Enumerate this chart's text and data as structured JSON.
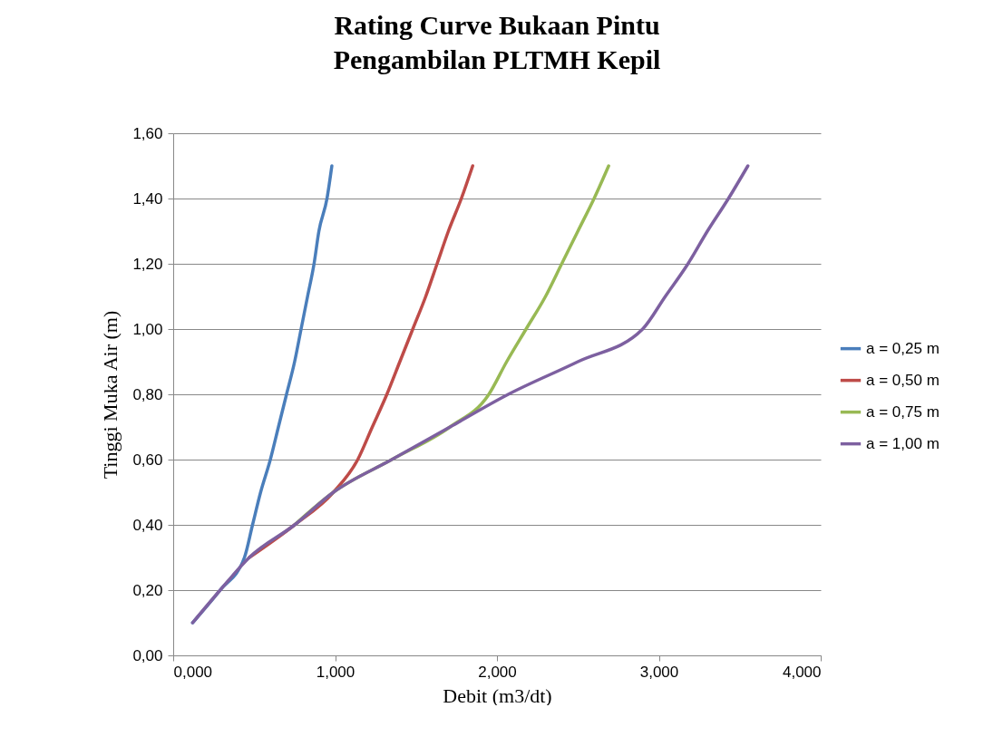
{
  "chart_data": {
    "type": "line",
    "title": "Rating Curve Bukaan Pintu\nPengambilan PLTMH Kepil",
    "xlabel": "Debit (m3/dt)",
    "ylabel": "Tinggi Muka Air (m)",
    "series": [
      {
        "name": "a = 0,25 m",
        "color": "#4a7ebb",
        "x": [
          0.12,
          0.29,
          0.44,
          0.49,
          0.54,
          0.6,
          0.65,
          0.7,
          0.75,
          0.79,
          0.83,
          0.87,
          0.9,
          0.95,
          0.98
        ],
        "values": [
          0.1,
          0.2,
          0.3,
          0.4,
          0.5,
          0.6,
          0.7,
          0.8,
          0.9,
          1.0,
          1.1,
          1.2,
          1.3,
          1.4,
          1.5
        ]
      },
      {
        "name": "a = 0,50 m",
        "color": "#be4b48",
        "x": [
          0.47,
          0.75,
          0.99,
          1.14,
          1.23,
          1.32,
          1.4,
          1.48,
          1.56,
          1.63,
          1.7,
          1.78,
          1.85
        ],
        "values": [
          0.3,
          0.4,
          0.5,
          0.6,
          0.7,
          0.8,
          0.9,
          1.0,
          1.1,
          1.2,
          1.3,
          1.4,
          1.5
        ]
      },
      {
        "name": "a = 0,75 m",
        "color": "#98b954",
        "x": [
          0.75,
          0.99,
          1.35,
          1.71,
          1.95,
          2.06,
          2.18,
          2.3,
          2.4,
          2.5,
          2.6,
          2.69
        ],
        "values": [
          0.4,
          0.5,
          0.6,
          0.7,
          0.8,
          0.9,
          1.0,
          1.1,
          1.2,
          1.3,
          1.4,
          1.5
        ]
      },
      {
        "name": "a = 1,00 m",
        "color": "#7d60a0",
        "x": [
          0.12,
          0.29,
          0.47,
          0.75,
          0.99,
          1.35,
          1.71,
          2.07,
          2.5,
          2.9,
          3.04,
          3.18,
          3.3,
          3.43,
          3.55
        ],
        "values": [
          0.1,
          0.2,
          0.3,
          0.4,
          0.5,
          0.6,
          0.7,
          0.8,
          0.9,
          1.0,
          1.1,
          1.2,
          1.3,
          1.4,
          1.5
        ]
      }
    ],
    "xlim": [
      0,
      4
    ],
    "xticks": [
      {
        "value": 0,
        "label": "0,000"
      },
      {
        "value": 1,
        "label": "1,000"
      },
      {
        "value": 2,
        "label": "2,000"
      },
      {
        "value": 3,
        "label": "3,000"
      },
      {
        "value": 4,
        "label": "4,000"
      }
    ],
    "ylim": [
      0,
      1.6
    ],
    "yticks": [
      {
        "value": 0,
        "label": "0,00"
      },
      {
        "value": 0.2,
        "label": "0,20"
      },
      {
        "value": 0.4,
        "label": "0,40"
      },
      {
        "value": 0.6,
        "label": "0,60"
      },
      {
        "value": 0.8,
        "label": "0,80"
      },
      {
        "value": 1.0,
        "label": "1,00"
      },
      {
        "value": 1.2,
        "label": "1,20"
      },
      {
        "value": 1.4,
        "label": "1,40"
      },
      {
        "value": 1.6,
        "label": "1,60"
      }
    ],
    "grid": "y",
    "legend": "right",
    "marker": "none",
    "line_style": "solid"
  }
}
